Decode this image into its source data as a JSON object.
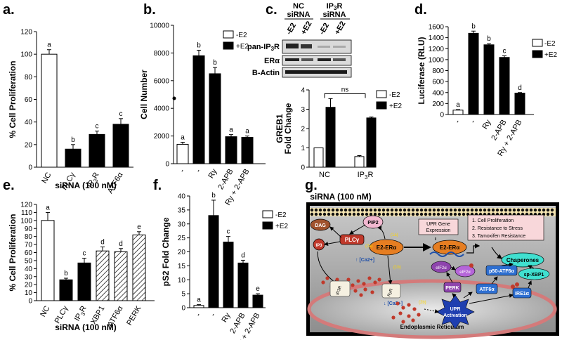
{
  "panels": {
    "a": {
      "label": "a."
    },
    "b": {
      "label": "b."
    },
    "c": {
      "label": "c."
    },
    "d": {
      "label": "d."
    },
    "e": {
      "label": "e."
    },
    "f": {
      "label": "f."
    },
    "g": {
      "label": "g."
    }
  },
  "legend": {
    "minus": "-E2",
    "plus": "+E2"
  },
  "chart_data": [
    {
      "id": "a",
      "type": "bar",
      "ylabel": "% Cell Proliferation",
      "xlabel": "siRNA (100 nM)",
      "ylim": [
        0,
        120
      ],
      "yticks": [
        "0",
        "20",
        "40",
        "60",
        "80",
        "100",
        "120"
      ],
      "categories": [
        "NC",
        "PLCγ",
        "IP3R",
        "ATF6α"
      ],
      "values": [
        100,
        16,
        29,
        38
      ],
      "errors": [
        4,
        4,
        3,
        5
      ],
      "fills": [
        "white",
        "black",
        "black",
        "black"
      ],
      "letters": [
        "a",
        "b",
        "c",
        "c"
      ]
    },
    {
      "id": "b",
      "type": "bar",
      "ylabel": "Cell Number",
      "ylim": [
        0,
        10000
      ],
      "yticks": [
        "0",
        "2000",
        "4000",
        "6000",
        "8000",
        "10000"
      ],
      "categories": [
        "-",
        "-",
        "Ry",
        "2-APB",
        "Ry + 2-APB"
      ],
      "series": [
        {
          "name": "-E2",
          "values": [
            1400,
            null,
            null,
            null,
            null
          ]
        },
        {
          "name": "+E2",
          "values": [
            null,
            7800,
            6500,
            1950,
            1900
          ]
        }
      ],
      "errors": [
        150,
        400,
        450,
        150,
        100
      ],
      "letters": [
        "a",
        "b",
        "b",
        "a",
        "a"
      ]
    },
    {
      "id": "c",
      "type": "bar",
      "ylabel": "GREB1 Fold Change",
      "xlabel": "siRNA (100 nM)",
      "ylim": [
        0,
        4
      ],
      "yticks": [
        "0",
        "1",
        "2",
        "3",
        "4"
      ],
      "categories": [
        "NC",
        "IP3R"
      ],
      "series": [
        {
          "name": "-E2",
          "values": [
            1.0,
            0.55
          ]
        },
        {
          "name": "+E2",
          "values": [
            3.1,
            2.55
          ]
        }
      ],
      "errors_minus": [
        0,
        0.05
      ],
      "errors_plus": [
        0.45,
        0.05
      ],
      "annotation": "ns",
      "blot": {
        "groups": [
          "NC siRNA",
          "IP3R siRNA"
        ],
        "lanes": [
          "-E2",
          "+E2",
          "-E2",
          "+E2"
        ],
        "rows": [
          "pan-IP3R",
          "ERα",
          "Β-Actin"
        ]
      }
    },
    {
      "id": "d",
      "type": "bar",
      "ylabel": "Luciferase (RLU)",
      "ylim": [
        0,
        1600
      ],
      "yticks": [
        "0",
        "200",
        "400",
        "600",
        "800",
        "1000",
        "1200",
        "1400",
        "1600"
      ],
      "categories": [
        "-",
        "-",
        "Ry",
        "2-APB",
        "Ry + 2-APB"
      ],
      "series": [
        {
          "name": "-E2",
          "values": [
            80,
            null,
            null,
            null,
            null
          ]
        },
        {
          "name": "+E2",
          "values": [
            null,
            1480,
            1270,
            1040,
            390
          ]
        }
      ],
      "errors": [
        10,
        40,
        20,
        30,
        10
      ],
      "letters": [
        "a",
        "b",
        "b",
        "c",
        "d"
      ]
    },
    {
      "id": "e",
      "type": "bar",
      "ylabel": "% Cell Proliferation",
      "xlabel": "siRNA (100 nM)",
      "ylim": [
        0,
        120
      ],
      "yticks": [
        "0",
        "10",
        "20",
        "30",
        "40",
        "50",
        "60",
        "70",
        "80",
        "90",
        "100",
        "110",
        "120"
      ],
      "categories": [
        "NC",
        "PLCγ",
        "IP3R",
        "XBP1",
        "ATF6α",
        "PERK"
      ],
      "values": [
        100,
        26,
        47,
        62,
        61,
        82
      ],
      "errors": [
        10,
        2,
        6,
        5,
        4,
        4
      ],
      "fills": [
        "white",
        "black",
        "black",
        "hatch",
        "hatch",
        "hatch"
      ],
      "letters": [
        "a",
        "b",
        "c",
        "d",
        "d",
        "e"
      ]
    },
    {
      "id": "f",
      "type": "bar",
      "ylabel": "pS2 Fold Change",
      "ylim": [
        0,
        40
      ],
      "yticks": [
        "0",
        "5",
        "10",
        "15",
        "20",
        "25",
        "30",
        "35",
        "40"
      ],
      "categories": [
        "-",
        "-",
        "Ry",
        "2-APB",
        "Ry + 2-APB"
      ],
      "series": [
        {
          "name": "-E2",
          "values": [
            0.8,
            null,
            null,
            null,
            null
          ]
        },
        {
          "name": "+E2",
          "values": [
            null,
            33,
            23.5,
            16,
            4.5
          ]
        }
      ],
      "errors": [
        0.3,
        5.5,
        2.0,
        1.0,
        0.5
      ],
      "letters": [
        "a",
        "b",
        "c",
        "d",
        "e"
      ]
    }
  ],
  "diagram": {
    "dag": "DAG",
    "pip2": "PIP2",
    "plcg": "PLCγ",
    "ip3": "IP3",
    "er_alpha": "E2-ERα",
    "er_alpha2": "E2-ERα",
    "upr_gene": "UPR Gene Expression",
    "outcomes": [
      "1. Cell Proliferation",
      "2. Resistance to Stress",
      "3. Tamoxifen Resistance"
    ],
    "chaperones": "Chaperones",
    "ca": "↑ [Ca2+]",
    "ca_er": "↓ [Ca2+]",
    "step1a": "(1a)",
    "step1b": "(1b)",
    "step2a": "(2a)",
    "step2b": "(2b)",
    "eif2a": "eIF2α",
    "eif2a_p": "eIF2α",
    "p50": "p50-ATF6α",
    "spxbp1": "sp-XBP1",
    "perk": "PERK",
    "atf6": "ATF6α",
    "ire1": "IRE1α",
    "ip3r": "IP3R",
    "ryr": "RyR",
    "upr_act": "UPR Activation",
    "er": "Endoplasmic Reticulum"
  }
}
